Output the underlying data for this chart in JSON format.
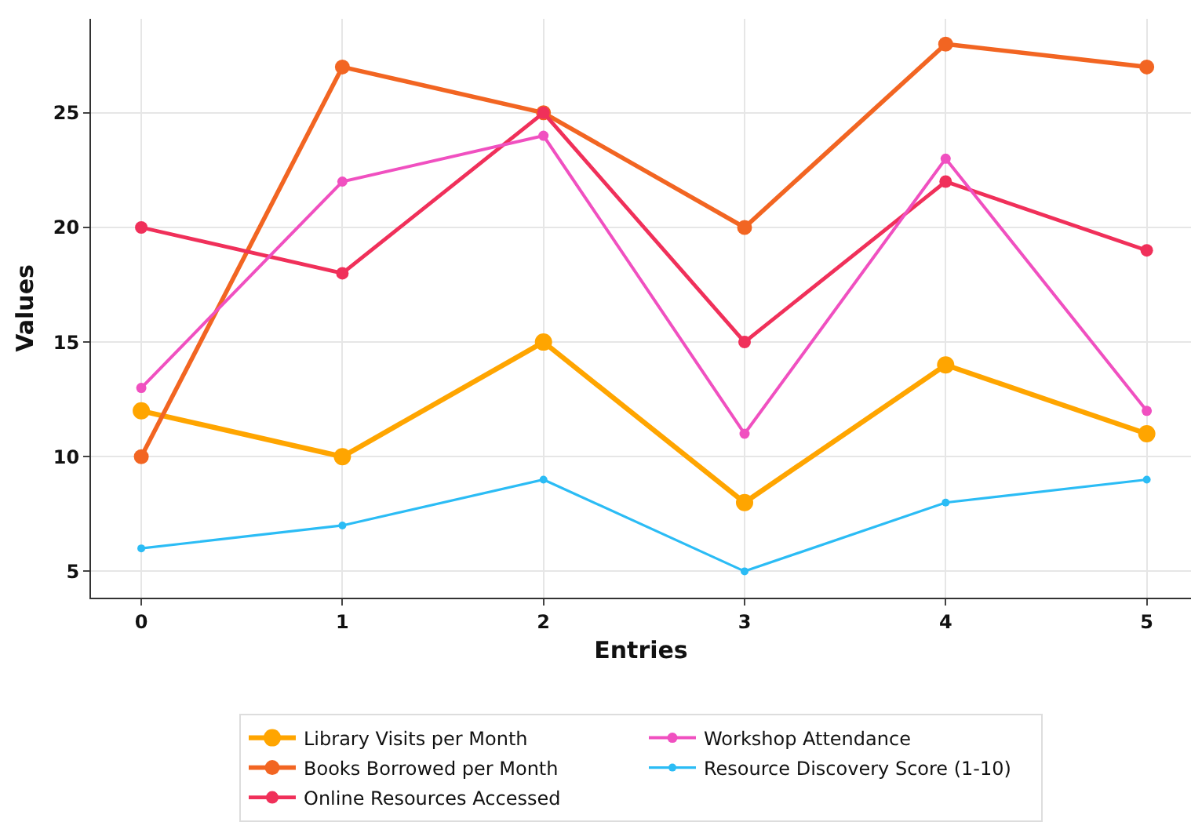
{
  "chart_data": {
    "type": "line",
    "xlabel": "Entries",
    "ylabel": "Values",
    "x": [
      0,
      1,
      2,
      3,
      4,
      5
    ],
    "series": [
      {
        "name": "Library Visits per Month",
        "color": "#ffa500",
        "values": [
          12,
          10,
          15,
          8,
          14,
          11
        ]
      },
      {
        "name": "Books Borrowed per Month",
        "color": "#f26522",
        "values": [
          10,
          27,
          25,
          20,
          28,
          27
        ]
      },
      {
        "name": "Online Resources Accessed",
        "color": "#f0305a",
        "values": [
          20,
          18,
          25,
          15,
          22,
          19
        ]
      },
      {
        "name": "Workshop Attendance",
        "color": "#f050c0",
        "values": [
          13,
          22,
          24,
          11,
          23,
          12
        ]
      },
      {
        "name": "Resource Discovery Score (1-10)",
        "color": "#2bbcf5",
        "values": [
          6,
          7,
          9,
          5,
          8,
          9
        ]
      }
    ],
    "xlim": [
      -0.25,
      5.22
    ],
    "xticks": [
      0,
      1,
      2,
      3,
      4,
      5
    ],
    "ylim": [
      3.85,
      29.1
    ],
    "yticks": [
      5,
      10,
      15,
      20,
      25
    ],
    "grid": true,
    "legend": "bottom",
    "marker": "circle",
    "line_style": "solid"
  }
}
